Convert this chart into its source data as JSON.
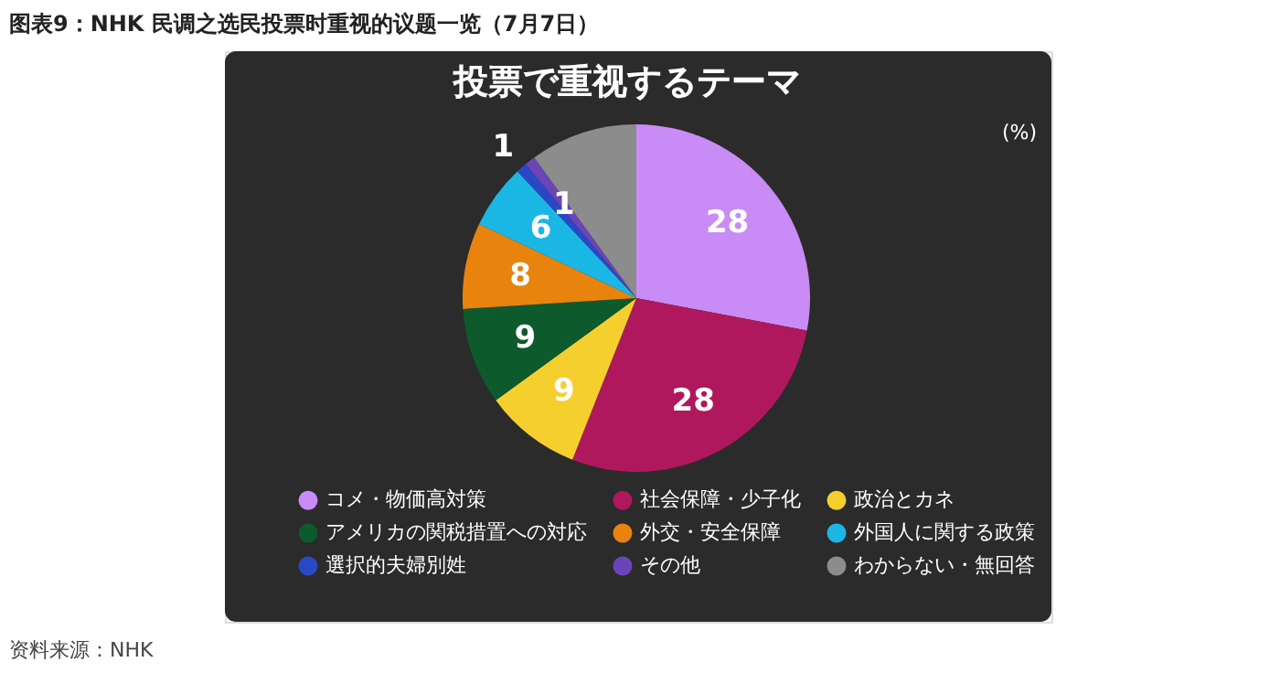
{
  "chart_data": {
    "type": "pie",
    "title": "图表9：NHK 民调之选民投票时重视的议题一览（7月7日）",
    "subtitle": "投票で重视するテーマ",
    "categories": [
      "コメ・物価高対策",
      "社会保障・少子化",
      "政治とカネ",
      "アメリカの関税措置への対応",
      "外交・安全保障",
      "外国人に関する政策",
      "選択的夫婦別姓",
      "その他",
      "わからない・無回答"
    ],
    "values": [
      28,
      28,
      9,
      9,
      8,
      6,
      1,
      1,
      10
    ],
    "colors": [
      "#c98bf5",
      "#b0185d",
      "#f5cf2e",
      "#0d5a2c",
      "#e8830e",
      "#1bb7e4",
      "#2a48c6",
      "#6b45b8",
      "#8c8c8c"
    ],
    "value_labels": [
      "28",
      "28",
      "9",
      "9",
      "8",
      "6",
      "1",
      "1",
      null
    ],
    "legend": "bottom",
    "annotations": [
      "(%)",
      "资料来源：NHK"
    ]
  }
}
